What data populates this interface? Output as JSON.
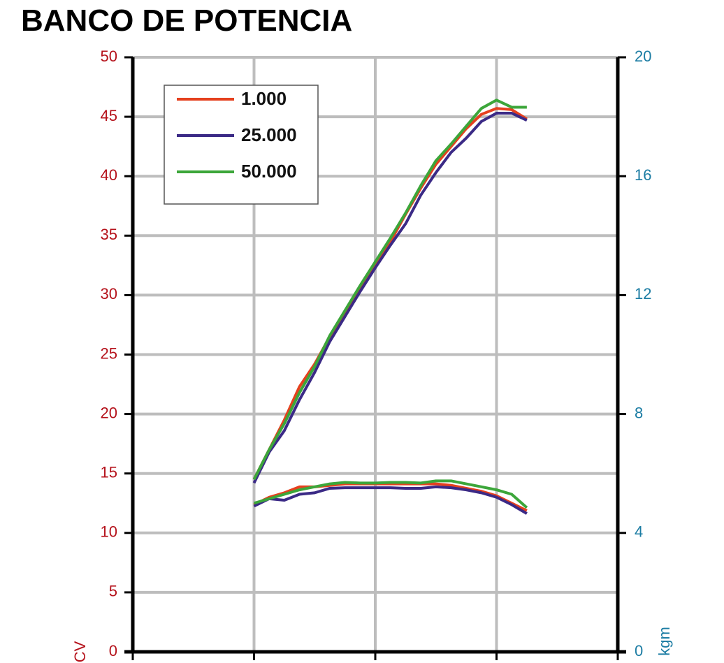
{
  "chart_data": {
    "type": "line",
    "title": "BANCO DE POTENCIA",
    "y_label": "CV",
    "y2_label": "kgm",
    "x": [
      8,
      9,
      10,
      11,
      12,
      13,
      14,
      15,
      16,
      17,
      18,
      19,
      20,
      21,
      22,
      23,
      24,
      25,
      26
    ],
    "xlim": [
      0,
      32
    ],
    "xticks": [
      0,
      8,
      16,
      24,
      32
    ],
    "ylim": [
      0,
      50
    ],
    "yticks": [
      0,
      5,
      10,
      15,
      20,
      25,
      30,
      35,
      40,
      45,
      50
    ],
    "y2lim": [
      0,
      20
    ],
    "y2ticks": [
      0,
      4,
      8,
      12,
      16,
      20
    ],
    "grid": true,
    "legend": "upper left",
    "series": [
      {
        "name": "1.000",
        "color": "#e5401e",
        "values": [
          14.5,
          17,
          19.5,
          22.3,
          24.2,
          26.5,
          28.5,
          30.5,
          32.5,
          34.5,
          36.8,
          39,
          41,
          42.5,
          44,
          45.2,
          45.7,
          45.6,
          44.8
        ]
      },
      {
        "name": "25.000",
        "color": "#3b2a86",
        "values": [
          14.2,
          16.8,
          18.6,
          21.2,
          23.5,
          26.1,
          28.2,
          30.3,
          32.3,
          34.2,
          36,
          38.4,
          40.3,
          42,
          43.2,
          44.6,
          45.3,
          45.3,
          44.7
        ]
      },
      {
        "name": "50.000",
        "color": "#3ca63a",
        "values": [
          14.5,
          17,
          19.2,
          21.8,
          24,
          26.6,
          28.7,
          30.8,
          32.8,
          34.8,
          36.9,
          39.2,
          41.3,
          42.7,
          44.2,
          45.7,
          46.4,
          45.8,
          45.8
        ]
      },
      {
        "color": "#e5401e",
        "axis": "y2",
        "values": [
          4.95,
          5.2,
          5.35,
          5.55,
          5.55,
          5.6,
          5.65,
          5.65,
          5.65,
          5.65,
          5.65,
          5.65,
          5.65,
          5.6,
          5.5,
          5.4,
          5.25,
          5,
          4.75
        ]
      },
      {
        "color": "#3b2a86",
        "axis": "y2",
        "values": [
          4.9,
          5.15,
          5.1,
          5.3,
          5.35,
          5.5,
          5.52,
          5.52,
          5.52,
          5.52,
          5.5,
          5.5,
          5.55,
          5.52,
          5.45,
          5.35,
          5.2,
          4.95,
          4.65
        ]
      },
      {
        "color": "#3ca63a",
        "axis": "y2",
        "values": [
          5,
          5.15,
          5.3,
          5.45,
          5.55,
          5.65,
          5.7,
          5.68,
          5.68,
          5.7,
          5.7,
          5.68,
          5.75,
          5.75,
          5.65,
          5.55,
          5.45,
          5.3,
          4.85
        ]
      }
    ]
  }
}
